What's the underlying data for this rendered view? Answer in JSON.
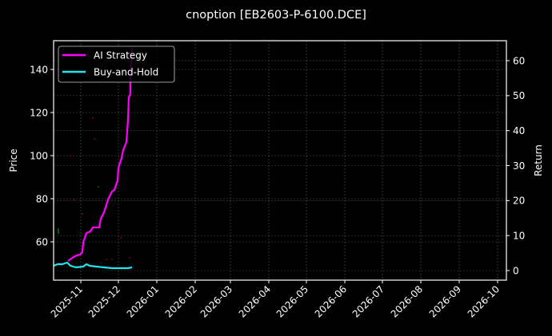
{
  "figure": {
    "title": "cnoption [EB2603-P-6100.DCE]",
    "background": "#000000"
  },
  "chart_data": {
    "type": "line",
    "title": "cnoption [EB2603-P-6100.DCE]",
    "xlabel": "",
    "ylabel": "Price",
    "ylabel_right": "Return",
    "x_ticks": [
      "2025-11",
      "2025-12",
      "2026-01",
      "2026-02",
      "2026-03",
      "2026-04",
      "2026-05",
      "2026-06",
      "2026-07",
      "2026-08",
      "2026-09",
      "2026-10"
    ],
    "y_ticks_left": [
      60,
      80,
      100,
      120,
      140
    ],
    "y_ticks_right": [
      0,
      10,
      20,
      30,
      40,
      50,
      60
    ],
    "ylim_left": [
      45,
      154
    ],
    "ylim_right": [
      -2.8,
      65.6
    ],
    "xlim": [
      "2025-10-19",
      "2026-10-23"
    ],
    "grid": true,
    "legend_position": "upper left",
    "series": [
      {
        "name": "AI Strategy",
        "color": "#ff00ff",
        "axis": "right",
        "x": [
          "2025-10-26",
          "2025-10-31",
          "2025-11-03",
          "2025-11-06",
          "2025-11-08",
          "2025-11-09",
          "2025-11-12",
          "2025-11-15",
          "2025-11-18",
          "2025-11-24",
          "2025-11-25",
          "2025-11-28",
          "2025-11-30",
          "2025-12-01",
          "2025-12-05",
          "2025-12-07",
          "2025-12-10",
          "2025-12-11",
          "2025-12-13",
          "2025-12-15",
          "2025-12-18",
          "2025-12-19",
          "2025-12-20",
          "2025-12-21",
          "2025-12-21",
          "2025-12-22",
          "2025-12-23"
        ],
        "values": [
          2.7,
          3.9,
          4.3,
          4.6,
          5.2,
          8.0,
          10.7,
          11.2,
          12.3,
          12.3,
          14.8,
          16.6,
          18.7,
          20.3,
          22.6,
          23.0,
          25.8,
          29.4,
          32.2,
          34.4,
          36.7,
          43.1,
          49.5,
          50.4,
          53.4,
          59.5,
          63.7
        ]
      },
      {
        "name": "Buy-and-Hold",
        "color": "#22e5ee",
        "axis": "right",
        "x": [
          "2025-10-19",
          "2025-10-23",
          "2025-10-27",
          "2025-10-31",
          "2025-11-03",
          "2025-11-08",
          "2025-11-14",
          "2025-11-17",
          "2025-11-20",
          "2025-11-26",
          "2025-12-03",
          "2025-12-10",
          "2025-12-17",
          "2025-12-24",
          "2025-12-27"
        ],
        "values": [
          1.4,
          1.8,
          1.8,
          2.3,
          1.4,
          0.9,
          1.1,
          1.8,
          1.4,
          1.1,
          0.9,
          0.7,
          0.7,
          0.7,
          0.9
        ]
      }
    ],
    "scatter_markers": [
      {
        "color": "#ff0000",
        "approx_price": 100,
        "approx_date": "2025-10-31"
      },
      {
        "color": "#ff0000",
        "approx_price": 117,
        "approx_date": "2025-11-20"
      },
      {
        "color": "#ff0000",
        "approx_price": 107,
        "approx_date": "2025-11-22"
      },
      {
        "color": "#ff0000",
        "approx_price": 73,
        "approx_date": "2025-11-08"
      },
      {
        "color": "#ff0000",
        "approx_price": 52,
        "approx_date": "2025-12-20"
      },
      {
        "color": "#ff0000",
        "approx_price": 51,
        "approx_date": "2025-12-11"
      },
      {
        "color": "#00ff00",
        "approx_price": 65,
        "approx_date": "2025-10-22"
      },
      {
        "color": "#00ff00",
        "approx_price": 85,
        "approx_date": "2025-11-24"
      }
    ]
  },
  "legend": {
    "items": [
      {
        "label": "AI Strategy",
        "color": "#ff00ff"
      },
      {
        "label": "Buy-and-Hold",
        "color": "#22e5ee"
      }
    ]
  },
  "axes": {
    "left_label": "Price",
    "right_label": "Return",
    "left_ticks": [
      "60",
      "80",
      "100",
      "120",
      "140"
    ],
    "right_ticks": [
      "0",
      "10",
      "20",
      "30",
      "40",
      "50",
      "60"
    ],
    "x_ticks": [
      "2025-11",
      "2025-12",
      "2026-01",
      "2026-02",
      "2026-03",
      "2026-04",
      "2026-05",
      "2026-06",
      "2026-07",
      "2026-08",
      "2026-09",
      "2026-10"
    ]
  }
}
